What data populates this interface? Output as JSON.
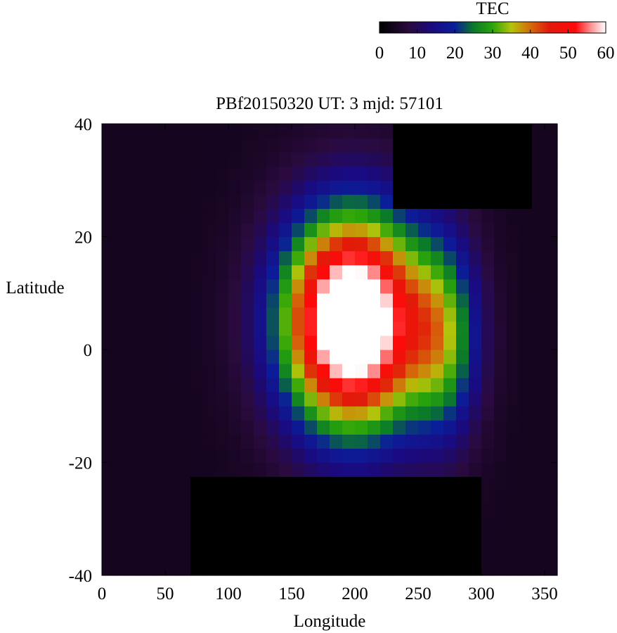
{
  "chart_data": {
    "type": "heatmap",
    "title": "PBf20150320  UT: 3  mjd: 57101",
    "xlabel": "Longitude",
    "ylabel": "Latitude",
    "xlim": [
      0,
      360
    ],
    "ylim": [
      -40,
      40
    ],
    "xticks": [
      "0",
      "50",
      "100",
      "150",
      "200",
      "250",
      "300",
      "350"
    ],
    "yticks": [
      "40",
      "20",
      "0",
      "-20",
      "-40"
    ],
    "grid": false,
    "colorbar": {
      "label": "TEC",
      "range": [
        0,
        60
      ],
      "ticks": [
        "0",
        "10",
        "20",
        "30",
        "40",
        "50",
        "60"
      ],
      "stops": [
        {
          "value": 0,
          "color": "#000000"
        },
        {
          "value": 8,
          "color": "#2a0a3e"
        },
        {
          "value": 14,
          "color": "#1a0a80"
        },
        {
          "value": 20,
          "color": "#0a1e9a"
        },
        {
          "value": 25,
          "color": "#0a7a2a"
        },
        {
          "value": 30,
          "color": "#2aa40a"
        },
        {
          "value": 35,
          "color": "#b4c40a"
        },
        {
          "value": 40,
          "color": "#d46a0a"
        },
        {
          "value": 45,
          "color": "#e21a0a"
        },
        {
          "value": 52,
          "color": "#ff0a0a"
        },
        {
          "value": 56,
          "color": "#ff9090"
        },
        {
          "value": 60,
          "color": "#ffffff"
        }
      ]
    },
    "grid_resolution": {
      "dlon": 10,
      "dlat": 2.5
    },
    "features": {
      "peak": {
        "lon": 198,
        "lat": 5,
        "value": 70,
        "width_lon": 55,
        "width_lat": 19
      },
      "secondary": {
        "lon": 270,
        "lat": 2,
        "value": 22,
        "width_lon": 28,
        "width_lat": 18
      },
      "background_tec": 4,
      "no_data_north": {
        "lon_min": 235,
        "lon_max": 335,
        "lat_min": 25,
        "lat_max": 40
      },
      "no_data_south": {
        "lon_min": 70,
        "lon_max": 300,
        "lat_min": -40,
        "lat_max": -22
      }
    }
  }
}
